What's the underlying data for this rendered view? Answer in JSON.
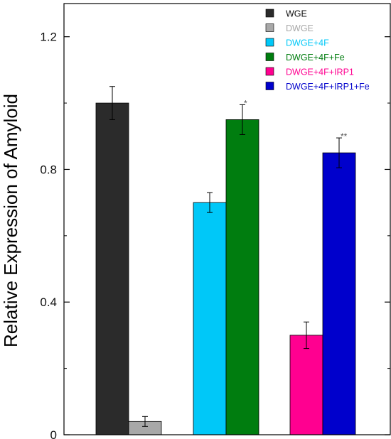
{
  "chart_data": {
    "type": "bar",
    "ylabel": "Relative Expression of Amyloid",
    "xlabel": "",
    "ylim": [
      0,
      1.3
    ],
    "yticks": [
      0,
      0.4,
      0.8,
      1.2
    ],
    "ytick_labels": [
      "0",
      "0.4",
      "0.8",
      "1.2"
    ],
    "legend_position": "top-right",
    "bars": [
      {
        "name": "WGE",
        "value": 1.0,
        "error": 0.05,
        "sig": "",
        "group": 0,
        "color": "#2b2b2b",
        "text_color": "#111111"
      },
      {
        "name": "DWGE",
        "value": 0.04,
        "error": 0.015,
        "sig": "",
        "group": 0,
        "color": "#a8a8a8",
        "text_color": "#a8a8a8"
      },
      {
        "name": "DWGE+4F",
        "value": 0.7,
        "error": 0.03,
        "sig": "",
        "group": 1,
        "color": "#00c8f8",
        "text_color": "#00c8f8"
      },
      {
        "name": "DWGE+4F+Fe",
        "value": 0.95,
        "error": 0.045,
        "sig": "*",
        "group": 1,
        "color": "#007d0f",
        "text_color": "#007d0f"
      },
      {
        "name": "DWGE+4F+IRP1",
        "value": 0.3,
        "error": 0.04,
        "sig": "",
        "group": 2,
        "color": "#ff0090",
        "text_color": "#ff0090"
      },
      {
        "name": "DWGE+4F+IRP1+Fe",
        "value": 0.85,
        "error": 0.045,
        "sig": "**",
        "group": 2,
        "color": "#0000cc",
        "text_color": "#0000cc"
      }
    ]
  }
}
